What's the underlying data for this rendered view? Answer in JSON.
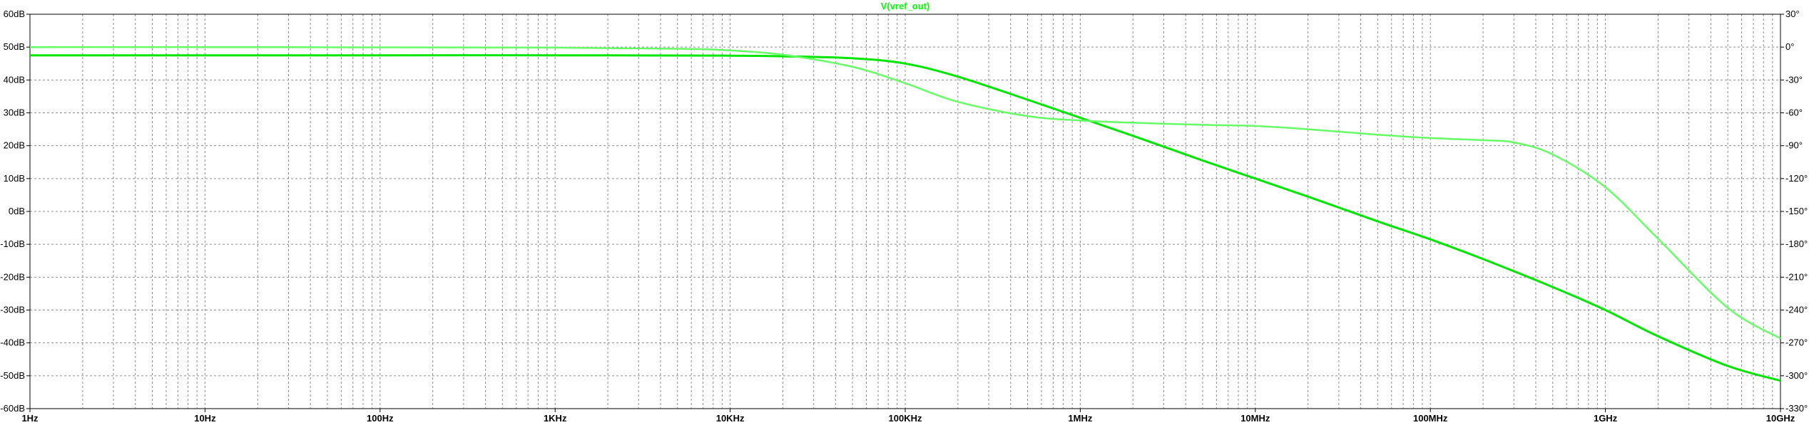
{
  "chart_data": {
    "type": "line",
    "title": "V(vref_out)",
    "title_color": "#00ff00",
    "x_scale": "log",
    "xlim": [
      1,
      10000000000
    ],
    "x_ticks": [
      {
        "value": 1,
        "label": "1Hz"
      },
      {
        "value": 10,
        "label": "10Hz"
      },
      {
        "value": 100,
        "label": "100Hz"
      },
      {
        "value": 1000,
        "label": "1KHz"
      },
      {
        "value": 10000,
        "label": "10KHz"
      },
      {
        "value": 100000,
        "label": "100KHz"
      },
      {
        "value": 1000000,
        "label": "1MHz"
      },
      {
        "value": 10000000,
        "label": "10MHz"
      },
      {
        "value": 100000000,
        "label": "100MHz"
      },
      {
        "value": 1000000000,
        "label": "1GHz"
      },
      {
        "value": 10000000000,
        "label": "10GHz"
      }
    ],
    "ylim_left": [
      -60,
      60
    ],
    "y_left_ticks": [
      "60dB",
      "50dB",
      "40dB",
      "30dB",
      "20dB",
      "10dB",
      "0dB",
      "-10dB",
      "-20dB",
      "-30dB",
      "-40dB",
      "-50dB",
      "-60dB"
    ],
    "y_left_values": [
      60,
      50,
      40,
      30,
      20,
      10,
      0,
      -10,
      -20,
      -30,
      -40,
      -50,
      -60
    ],
    "ylim_right": [
      -330,
      30
    ],
    "y_right_ticks": [
      "30°",
      "0°",
      "-30°",
      "-60°",
      "-90°",
      "-120°",
      "-150°",
      "-180°",
      "-210°",
      "-240°",
      "-270°",
      "-300°",
      "-330°"
    ],
    "y_right_values": [
      30,
      0,
      -30,
      -60,
      -90,
      -120,
      -150,
      -180,
      -210,
      -240,
      -270,
      -300,
      -330
    ],
    "grid": true,
    "series": [
      {
        "axis": "left",
        "style": "solid",
        "color": "#00e600",
        "x": [
          1,
          10,
          100,
          1000,
          10000,
          20000,
          50000,
          100000,
          200000,
          500000,
          1000000,
          2000000,
          5000000,
          10000000,
          20000000,
          50000000,
          100000000,
          200000000,
          500000000,
          1000000000,
          2000000000,
          5000000000,
          10000000000
        ],
        "values": [
          47.5,
          47.5,
          47.5,
          47.5,
          47.4,
          47.2,
          46.6,
          45.0,
          41.0,
          34.0,
          28.5,
          23.0,
          15.5,
          10.0,
          4.5,
          -3.0,
          -8.5,
          -14.5,
          -23.0,
          -30.0,
          -38.0,
          -47.0,
          -51.5
        ]
      },
      {
        "axis": "right",
        "style": "dashed",
        "color": "#66ff66",
        "x": [
          1,
          10,
          100,
          1000,
          5000,
          10000,
          20000,
          50000,
          100000,
          200000,
          500000,
          1000000,
          2000000,
          5000000,
          10000000,
          20000000,
          50000000,
          100000000,
          200000000,
          300000000,
          500000000,
          1000000000,
          2000000000,
          5000000000,
          10000000000
        ],
        "values": [
          0,
          0,
          -0.2,
          -0.5,
          -1.5,
          -3,
          -7,
          -18,
          -33,
          -50,
          -63,
          -67,
          -69,
          -71,
          -72,
          -75,
          -80,
          -83,
          -85,
          -87,
          -98,
          -128,
          -175,
          -238,
          -266
        ]
      }
    ]
  }
}
